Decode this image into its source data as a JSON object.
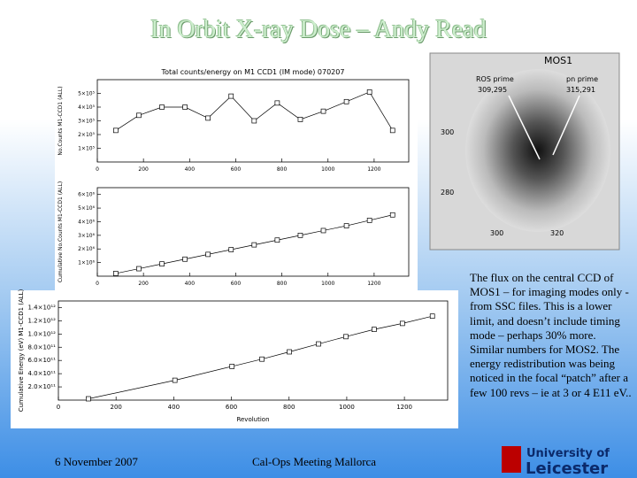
{
  "title": "In Orbit X-ray Dose – Andy Read",
  "chart_data": [
    {
      "type": "line",
      "title": "Total counts/energy on M1 CCD1 (IM mode) 070207",
      "y_label": "No.Counts M1-CCD1 (ALL)",
      "x": [
        80,
        180,
        280,
        380,
        480,
        580,
        680,
        780,
        880,
        980,
        1080,
        1180,
        1280
      ],
      "values": [
        230000,
        340000,
        400000,
        400000,
        320000,
        480000,
        300000,
        430000,
        310000,
        370000,
        440000,
        510000,
        230000
      ],
      "xlim": [
        0,
        1350
      ],
      "ylim": [
        0,
        600000
      ],
      "xticks": [
        0,
        200,
        400,
        600,
        800,
        1000,
        1200
      ],
      "yticks": [
        {
          "value": 100000,
          "label": "1×10⁵"
        },
        {
          "value": 200000,
          "label": "2×10⁵"
        },
        {
          "value": 300000,
          "label": "3×10⁵"
        },
        {
          "value": 400000,
          "label": "4×10⁵"
        },
        {
          "value": 500000,
          "label": "5×10⁵"
        }
      ]
    },
    {
      "type": "line",
      "y_label": "Cumulative No.Counts M1-CCD1 (ALL)",
      "x": [
        80,
        180,
        280,
        380,
        480,
        580,
        680,
        780,
        880,
        980,
        1080,
        1180,
        1280
      ],
      "values": [
        200000,
        550000,
        900000,
        1250000,
        1600000,
        1950000,
        2300000,
        2650000,
        3000000,
        3350000,
        3700000,
        4100000,
        4500000
      ],
      "xlim": [
        0,
        1350
      ],
      "ylim": [
        0,
        6500000
      ],
      "xticks": [
        0,
        200,
        400,
        600,
        800,
        1000,
        1200
      ],
      "yticks": [
        {
          "value": 1000000,
          "label": "1×10⁶"
        },
        {
          "value": 2000000,
          "label": "2×10⁶"
        },
        {
          "value": 3000000,
          "label": "3×10⁶"
        },
        {
          "value": 4000000,
          "label": "4×10⁶"
        },
        {
          "value": 5000000,
          "label": "5×10⁶"
        },
        {
          "value": 6000000,
          "label": "6×10⁶"
        }
      ]
    },
    {
      "type": "line",
      "y_label": "Cumulative Energy (eV) M1-CCD1 (ALL)",
      "x_label": "Revolution",
      "x": [
        104,
        404,
        602,
        706,
        801,
        902,
        997,
        1095,
        1193,
        1297
      ],
      "values": [
        20000000000,
        300000000000,
        510000000000,
        620000000000,
        730000000000,
        850000000000,
        960000000000,
        1070000000000,
        1160000000000,
        1270000000000
      ],
      "xlim": [
        0,
        1350
      ],
      "ylim": [
        0,
        1500000000000
      ],
      "xticks": [
        0,
        200,
        400,
        600,
        800,
        1000,
        1200
      ],
      "yticks": [
        {
          "value": 200000000000,
          "label": "2.0×10¹¹"
        },
        {
          "value": 400000000000,
          "label": "4.0×10¹¹"
        },
        {
          "value": 600000000000,
          "label": "6.0×10¹¹"
        },
        {
          "value": 800000000000,
          "label": "8.0×10¹¹"
        },
        {
          "value": 1000000000000,
          "label": "1.0×10¹²"
        },
        {
          "value": 1200000000000,
          "label": "1.2×10¹²"
        },
        {
          "value": 1400000000000,
          "label": "1.4×10¹²"
        }
      ]
    }
  ],
  "image": {
    "title": "MOS1",
    "left_label": "ROS prime",
    "left_coords": "309,295",
    "right_label": "pn prime",
    "right_coords": "315,291",
    "y_ticks": [
      "300",
      "280"
    ],
    "x_ticks": [
      "300",
      "320"
    ]
  },
  "body": "The flux on the central CCD of MOS1 – for imaging modes only - from SSC files. This is a lower limit, and doesn’t include timing mode – perhaps 30% more. Similar numbers for MOS2. The energy redistribution was being noticed in the focal “patch” after a few 100 revs – ie at 3 or 4 E11 eV..",
  "footer": {
    "date": "6 November 2007",
    "meeting": "Cal-Ops Meeting Mallorca"
  },
  "logo": {
    "line1": "University of",
    "line2": "Leicester"
  }
}
